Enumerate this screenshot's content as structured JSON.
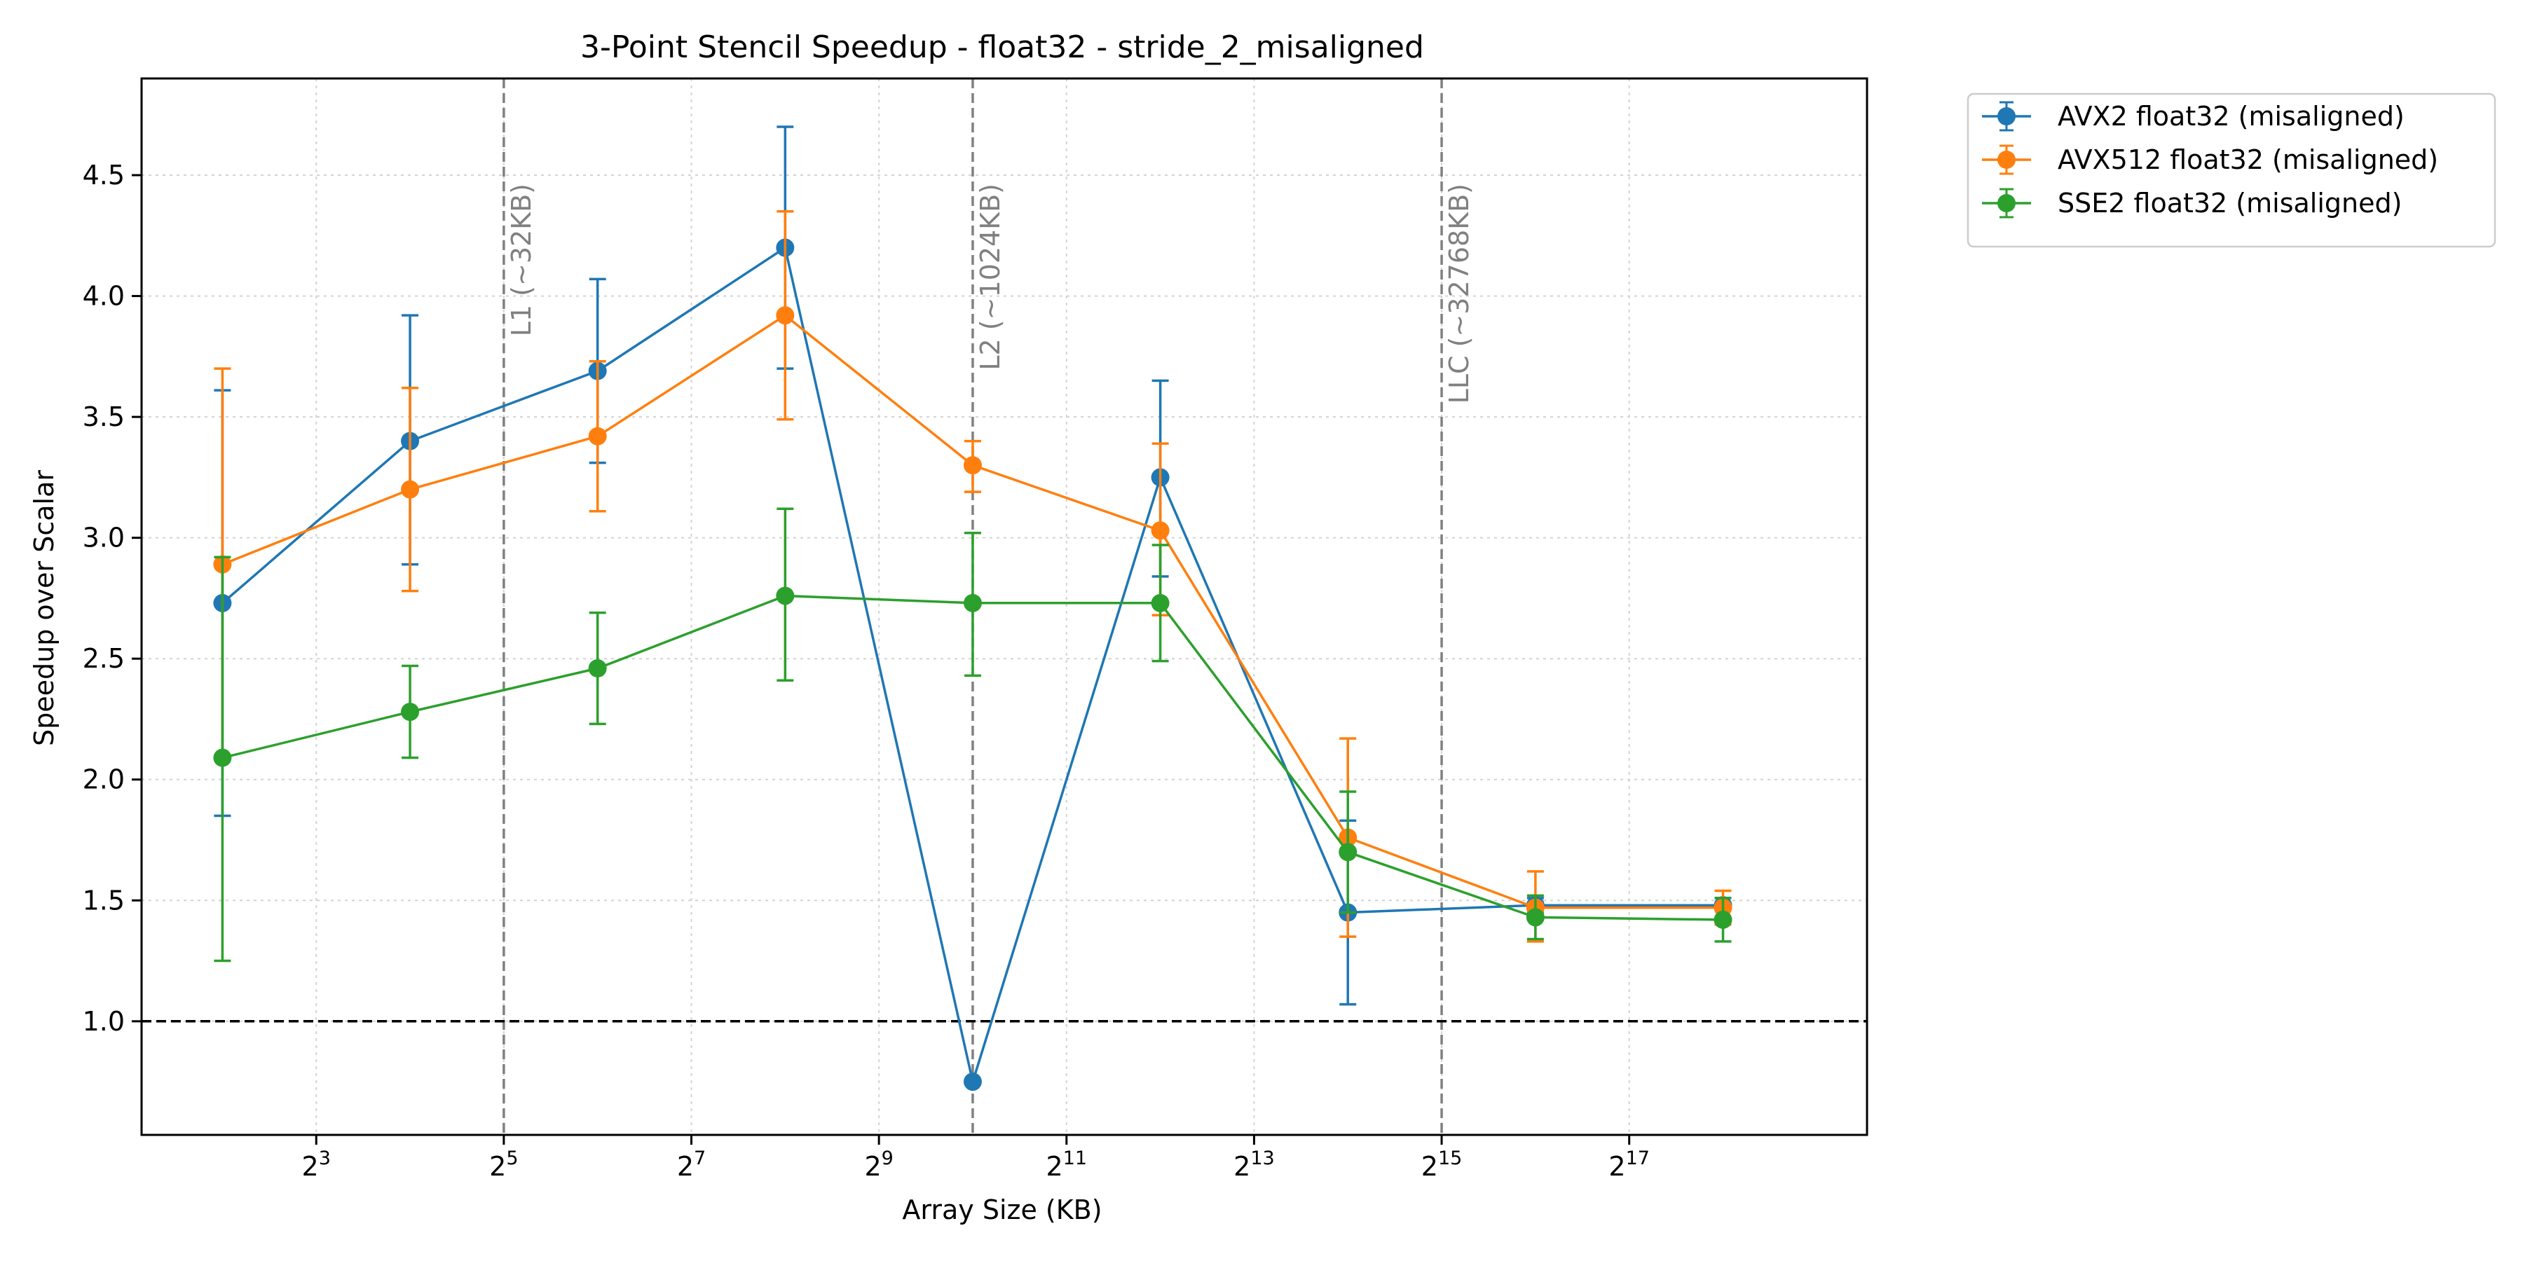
{
  "chart_data": {
    "type": "line",
    "title": "3-Point Stencil Speedup - float32 - stride_2_misaligned",
    "xlabel": "Array Size (KB)",
    "ylabel": "Speedup over Scalar",
    "xscale": "log2",
    "xlim": [
      2.2,
      760000
    ],
    "ylim": [
      0.53,
      4.9
    ],
    "x": [
      4,
      16,
      64,
      256,
      1024,
      4096,
      16384,
      65536,
      262144
    ],
    "x_ticks": [
      {
        "value": 8,
        "base": "2",
        "exp": "3"
      },
      {
        "value": 32,
        "base": "2",
        "exp": "5"
      },
      {
        "value": 128,
        "base": "2",
        "exp": "7"
      },
      {
        "value": 512,
        "base": "2",
        "exp": "9"
      },
      {
        "value": 2048,
        "base": "2",
        "exp": "11"
      },
      {
        "value": 8192,
        "base": "2",
        "exp": "13"
      },
      {
        "value": 32768,
        "base": "2",
        "exp": "15"
      },
      {
        "value": 131072,
        "base": "2",
        "exp": "17"
      }
    ],
    "y_ticks": [
      {
        "value": 1.0,
        "label": "1.0"
      },
      {
        "value": 1.5,
        "label": "1.5"
      },
      {
        "value": 2.0,
        "label": "2.0"
      },
      {
        "value": 2.5,
        "label": "2.5"
      },
      {
        "value": 3.0,
        "label": "3.0"
      },
      {
        "value": 3.5,
        "label": "3.5"
      },
      {
        "value": 4.0,
        "label": "4.0"
      },
      {
        "value": 4.5,
        "label": "4.5"
      }
    ],
    "grid": true,
    "legend_position": "outside-top-right",
    "series": [
      {
        "name": "AVX2 float32 (misaligned)",
        "color": "#1f77b4",
        "values": [
          2.73,
          3.4,
          3.69,
          4.2,
          0.75,
          3.25,
          1.45,
          1.48,
          1.48
        ],
        "err_low": [
          1.85,
          2.89,
          3.31,
          3.7,
          0.75,
          2.84,
          1.07,
          1.45,
          1.46
        ],
        "err_high": [
          3.61,
          3.92,
          4.07,
          4.7,
          0.75,
          3.65,
          1.83,
          1.51,
          1.51
        ]
      },
      {
        "name": "AVX512 float32 (misaligned)",
        "color": "#ff7f0e",
        "values": [
          2.89,
          3.2,
          3.42,
          3.92,
          3.3,
          3.03,
          1.76,
          1.47,
          1.47
        ],
        "err_low": [
          2.09,
          2.78,
          3.11,
          3.49,
          3.19,
          2.68,
          1.35,
          1.33,
          1.4
        ],
        "err_high": [
          3.7,
          3.62,
          3.73,
          4.35,
          3.4,
          3.39,
          2.17,
          1.62,
          1.54
        ]
      },
      {
        "name": "SSE2 float32 (misaligned)",
        "color": "#2ca02c",
        "values": [
          2.09,
          2.28,
          2.46,
          2.76,
          2.73,
          2.73,
          1.7,
          1.43,
          1.42
        ],
        "err_low": [
          1.25,
          2.09,
          2.23,
          2.41,
          2.43,
          2.49,
          1.45,
          1.34,
          1.33
        ],
        "err_high": [
          2.92,
          2.47,
          2.69,
          3.12,
          3.02,
          2.97,
          1.95,
          1.52,
          1.51
        ]
      }
    ],
    "reference_line": {
      "y": 1.0,
      "style": "dashed",
      "color": "#000000"
    },
    "cache_lines": [
      {
        "x": 32,
        "label": "L1 (~32KB)"
      },
      {
        "x": 1024,
        "label": "L2 (~1024KB)"
      },
      {
        "x": 32768,
        "label": "LLC (~32768KB)"
      }
    ]
  }
}
